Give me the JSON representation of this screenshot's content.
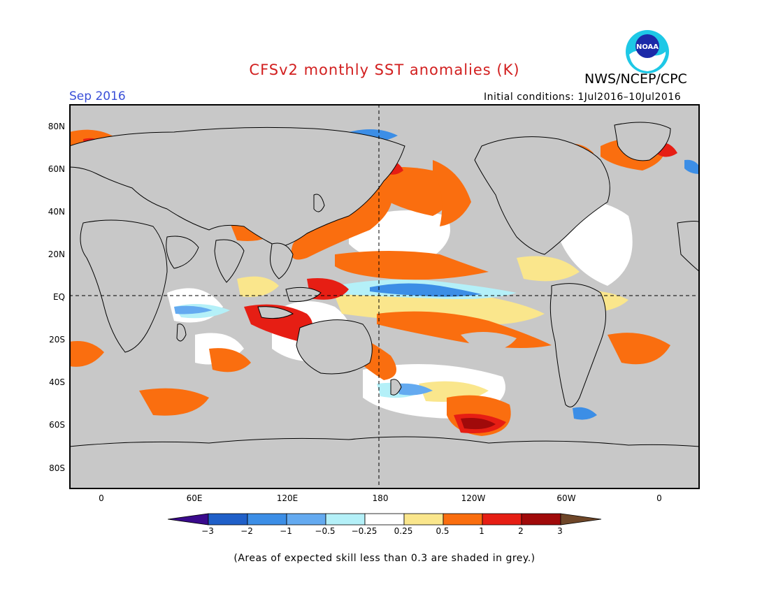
{
  "header": {
    "title": "CFSv2 monthly SST anomalies (K)",
    "agency": "NWS/NCEP/CPC",
    "month": "Sep 2016",
    "initial_conditions": "Initial conditions: 1Jul2016–10Jul2016",
    "logo_text": "NOAA"
  },
  "map": {
    "lat_labels": [
      "80N",
      "60N",
      "40N",
      "20N",
      "EQ",
      "20S",
      "40S",
      "60S",
      "80S"
    ],
    "lon_labels": [
      "0",
      "60E",
      "120E",
      "180",
      "120W",
      "60W",
      "0"
    ],
    "land_color": "#c8c8c8",
    "grey_color": "#c8c8c8"
  },
  "colorbar": {
    "labels": [
      "−3",
      "−2",
      "−1",
      "−0.5",
      "−0.25",
      "0.25",
      "0.5",
      "1",
      "2",
      "3"
    ],
    "colors": [
      "#3a0a8c",
      "#1f5fc8",
      "#3c8ee6",
      "#64aaf0",
      "#b4f0f8",
      "#ffffff",
      "#fae68c",
      "#fa6e0f",
      "#e61e14",
      "#a00a0a",
      "#6e4628"
    ]
  },
  "footer": {
    "note": "(Areas of expected skill less than 0.3 are shaded in grey.)"
  }
}
